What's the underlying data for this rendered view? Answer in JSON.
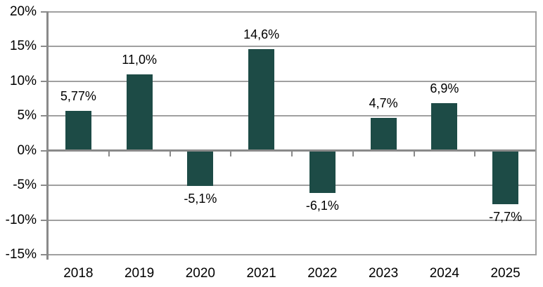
{
  "chart_data": {
    "type": "bar",
    "categories": [
      "2018",
      "2019",
      "2020",
      "2021",
      "2022",
      "2023",
      "2024",
      "2025"
    ],
    "values": [
      5.77,
      11.0,
      -5.1,
      14.6,
      -6.1,
      4.7,
      6.9,
      -7.7
    ],
    "data_labels": [
      "5,77%",
      "11,0%",
      "-5,1%",
      "14,6%",
      "-6,1%",
      "4,7%",
      "6,9%",
      "-7,7%"
    ],
    "y_axis": {
      "min": -15,
      "max": 20,
      "tick_step": 5,
      "ticks": [
        20,
        15,
        10,
        5,
        0,
        -5,
        -10,
        -15
      ],
      "tick_labels": [
        "20%",
        "15%",
        "10%",
        "5%",
        "0%",
        "-5%",
        "-10%",
        "-15%"
      ]
    },
    "grid": true,
    "legend": "none",
    "colors": {
      "bar": "#1d4b46",
      "gridline": "#a0a0a0",
      "axis": "#8a8a8a",
      "text": "#000000",
      "background": "#ffffff"
    }
  }
}
